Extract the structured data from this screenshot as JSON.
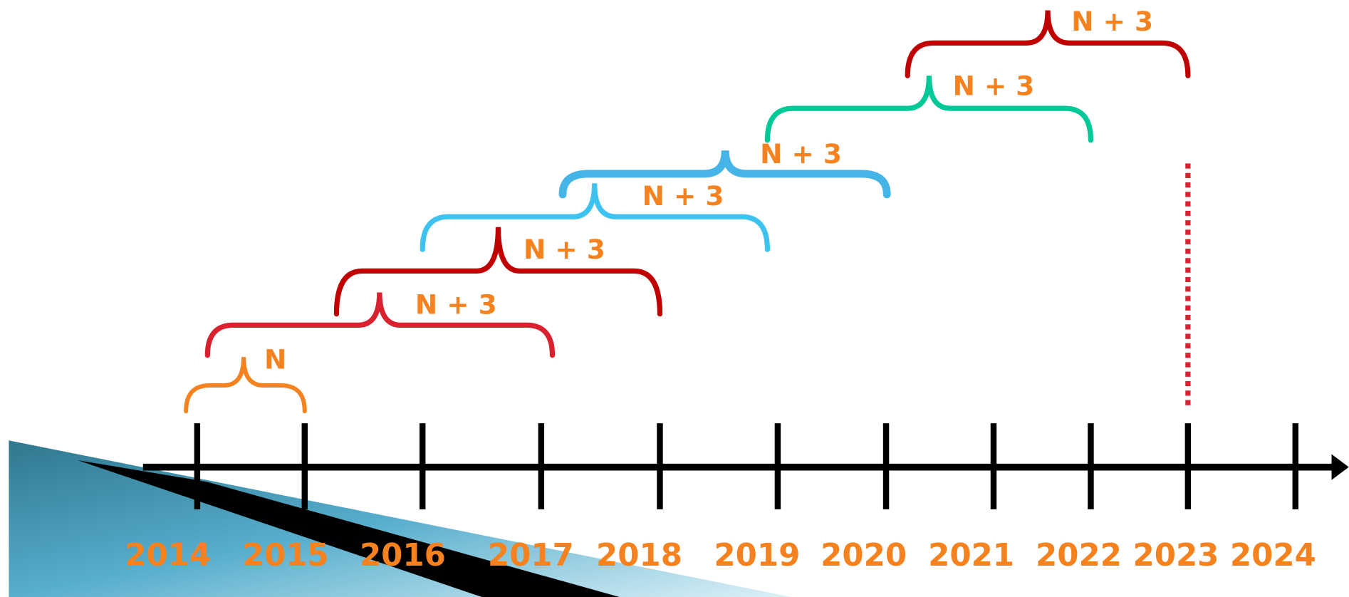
{
  "years": [
    "2014",
    "2015",
    "2016",
    "2017",
    "2018",
    "2019",
    "2020",
    "2021",
    "2022",
    "2023",
    "2024"
  ],
  "braces": [
    {
      "label": "N"
    },
    {
      "label": "N + 3"
    },
    {
      "label": "N + 3"
    },
    {
      "label": "N + 3"
    },
    {
      "label": "N + 3"
    },
    {
      "label": "N + 3"
    },
    {
      "label": "N + 3"
    }
  ]
}
